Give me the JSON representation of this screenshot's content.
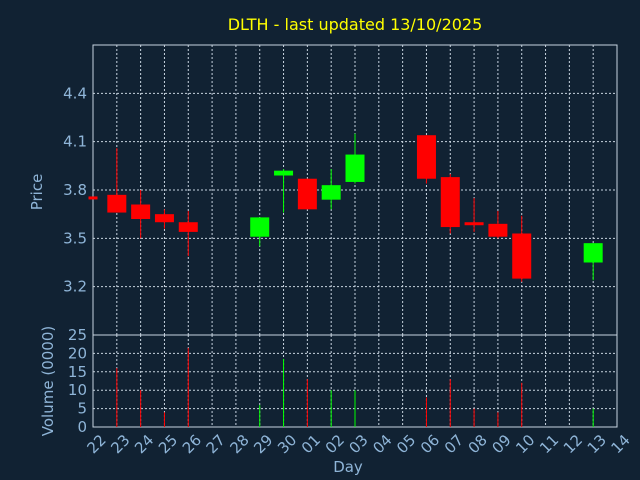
{
  "chart_data": [
    {
      "type": "candlestick",
      "title": "DLTH - last updated 13/10/2025",
      "ylabel": "Price",
      "ylim": [
        2.9,
        4.7
      ],
      "yticks": [
        3.2,
        3.5,
        3.8,
        4.1,
        4.4
      ],
      "grid": true,
      "colors": {
        "up": "#00ff00",
        "down": "#ff0000",
        "text": "#8fb5d8",
        "title": "#ffff00",
        "background": "#112233"
      },
      "categories": [
        "22",
        "23",
        "24",
        "25",
        "26",
        "27",
        "28",
        "29",
        "30",
        "01",
        "02",
        "03",
        "04",
        "05",
        "06",
        "07",
        "08",
        "09",
        "10",
        "11",
        "12",
        "13",
        "14"
      ],
      "candles": [
        {
          "day": "22",
          "open": 3.76,
          "high": 3.76,
          "low": 3.75,
          "close": 3.75
        },
        {
          "day": "23",
          "open": 3.77,
          "high": 4.06,
          "low": 3.66,
          "close": 3.66
        },
        {
          "day": "24",
          "open": 3.71,
          "high": 3.8,
          "low": 3.5,
          "close": 3.62
        },
        {
          "day": "25",
          "open": 3.65,
          "high": 3.68,
          "low": 3.56,
          "close": 3.6
        },
        {
          "day": "26",
          "open": 3.6,
          "high": 3.67,
          "low": 3.39,
          "close": 3.54
        },
        {
          "day": "29",
          "open": 3.51,
          "high": 3.63,
          "low": 3.45,
          "close": 3.63
        },
        {
          "day": "30",
          "open": 3.89,
          "high": 3.93,
          "low": 3.66,
          "close": 3.92
        },
        {
          "day": "01",
          "open": 3.87,
          "high": 3.87,
          "low": 3.68,
          "close": 3.68
        },
        {
          "day": "02",
          "open": 3.74,
          "high": 3.93,
          "low": 3.68,
          "close": 3.83
        },
        {
          "day": "03",
          "open": 3.85,
          "high": 4.15,
          "low": 3.84,
          "close": 4.02
        },
        {
          "day": "06",
          "open": 4.14,
          "high": 4.14,
          "low": 3.84,
          "close": 3.87
        },
        {
          "day": "07",
          "open": 3.88,
          "high": 3.9,
          "low": 3.53,
          "close": 3.57
        },
        {
          "day": "08",
          "open": 3.6,
          "high": 3.75,
          "low": 3.54,
          "close": 3.59
        },
        {
          "day": "09",
          "open": 3.59,
          "high": 3.67,
          "low": 3.5,
          "close": 3.51
        },
        {
          "day": "10",
          "open": 3.53,
          "high": 3.64,
          "low": 3.23,
          "close": 3.25
        },
        {
          "day": "13",
          "open": 3.35,
          "high": 3.47,
          "low": 3.24,
          "close": 3.47
        }
      ]
    },
    {
      "type": "bar",
      "ylabel": "Volume (0000)",
      "xlabel": "Day",
      "ylim": [
        0,
        25
      ],
      "yticks": [
        0,
        5,
        10,
        15,
        20,
        25
      ],
      "grid": true,
      "categories": [
        "22",
        "23",
        "24",
        "25",
        "26",
        "27",
        "28",
        "29",
        "30",
        "01",
        "02",
        "03",
        "04",
        "05",
        "06",
        "07",
        "08",
        "09",
        "10",
        "11",
        "12",
        "13",
        "14"
      ],
      "volumes": [
        {
          "day": "23",
          "value": 16,
          "direction": "down"
        },
        {
          "day": "24",
          "value": 10,
          "direction": "down"
        },
        {
          "day": "25",
          "value": 4,
          "direction": "down"
        },
        {
          "day": "26",
          "value": 21.5,
          "direction": "down"
        },
        {
          "day": "29",
          "value": 6,
          "direction": "up"
        },
        {
          "day": "30",
          "value": 18.5,
          "direction": "up"
        },
        {
          "day": "01",
          "value": 13,
          "direction": "down"
        },
        {
          "day": "02",
          "value": 10,
          "direction": "up"
        },
        {
          "day": "03",
          "value": 10,
          "direction": "up"
        },
        {
          "day": "06",
          "value": 8,
          "direction": "down"
        },
        {
          "day": "07",
          "value": 13,
          "direction": "down"
        },
        {
          "day": "08",
          "value": 5,
          "direction": "down"
        },
        {
          "day": "09",
          "value": 4,
          "direction": "down"
        },
        {
          "day": "10",
          "value": 12,
          "direction": "down"
        },
        {
          "day": "13",
          "value": 5,
          "direction": "up"
        }
      ]
    }
  ]
}
